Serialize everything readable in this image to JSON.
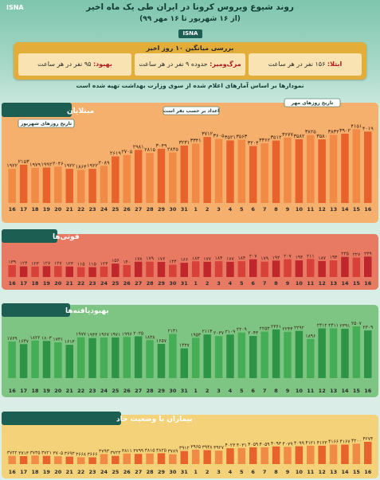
{
  "header": {
    "title": "روند شیوع ویروس کرونا در ایران طی یک ماه اخیر",
    "subtitle": "(از ۱۶ شهریور تا ۱۶ مهر ۹۹)",
    "logo": "ISNA",
    "logo_small": "ISNA"
  },
  "summary": {
    "heading": "بررسی میانگین ۱۰ روز اخیر",
    "infection": {
      "label": "ابتلا:",
      "value": "۱۵۶ نفر در هر ساعت"
    },
    "death": {
      "label": "مرگ‌ومیر:",
      "value": "حدوده ۹ نفر در هر ساعت"
    },
    "recovery": {
      "label": "بهبود:",
      "value": "۹۵ نفر در هر ساعت"
    }
  },
  "note": "نمودارها بر اساس آمارهای اعلام شده از سوی وزارت بهداشت تهیه شده است",
  "colors": {
    "background": "#dcefe8",
    "summary": "#e3ad3a",
    "cases": {
      "band": "#f6b06e",
      "bar": "#e8632b",
      "bar_light": "#f08a45"
    },
    "deaths": {
      "band": "#e87a64",
      "bar": "#c0272d",
      "bar_light": "#d74139"
    },
    "recovered": {
      "band": "#7ec583",
      "bar": "#2e9445",
      "bar_light": "#44ad56"
    },
    "critical": {
      "band": "#f4d27a",
      "bar": "#e8632b",
      "bar_light": "#f08a45"
    }
  },
  "chart_data": [
    {
      "type": "bar",
      "title": "مبتلایان",
      "annotations": [
        "تاریخ روزهای شهریور",
        "تاریخ روزهای مهر",
        "اعداد بر حسب نفر است"
      ],
      "categories": [
        "16",
        "17",
        "18",
        "19",
        "20",
        "21",
        "22",
        "23",
        "24",
        "25",
        "26",
        "27",
        "28",
        "29",
        "30",
        "31",
        "1",
        "2",
        "3",
        "4",
        "5",
        "6",
        "7",
        "8",
        "9",
        "10",
        "11",
        "12",
        "13",
        "14",
        "15",
        "16"
      ],
      "value_labels": [
        "۱۹۲۲",
        "۲۱۵۳",
        "۱۹۷۹",
        "۱۹۹۲",
        "۲۰۴۶",
        "۱۹۲۲",
        "۱۸۶۴",
        "۱۹۲۲",
        "۲۰۸۹",
        "۲۶۱۹",
        "۲۷۰۵",
        "۲۹۸۱",
        "۲۸۱۵",
        "۳۰۴۹",
        "۲۸۴۵",
        "۳۲۳۱",
        "۳۳۴۱",
        "۳۷۱۲",
        "۳۶۰۵",
        "۳۵۲۱",
        "۳۵۶۳",
        "۳۲۰۴",
        "۳۳۶۲",
        "۳۵۱۲",
        "۳۶۷۷",
        "۳۵۸۲",
        "۳۸۲۵",
        "۳۵۸۰",
        "۳۸۳۲",
        "۳۹۰۲",
        "۴۱۵۱",
        "۴۰۱۹"
      ],
      "values": [
        1922,
        2153,
        1979,
        1992,
        2046,
        1922,
        1864,
        1922,
        2089,
        2619,
        2705,
        2981,
        2815,
        3049,
        2845,
        3231,
        3341,
        3712,
        3605,
        3521,
        3563,
        3204,
        3362,
        3512,
        3677,
        3582,
        3825,
        3580,
        3832,
        3902,
        4151,
        4019
      ],
      "ylim": [
        0,
        4300
      ]
    },
    {
      "type": "bar",
      "title": "فوتی‌ها",
      "categories": [
        "16",
        "17",
        "18",
        "19",
        "20",
        "21",
        "22",
        "23",
        "24",
        "25",
        "26",
        "27",
        "28",
        "29",
        "30",
        "31",
        "1",
        "2",
        "3",
        "4",
        "5",
        "6",
        "7",
        "8",
        "9",
        "10",
        "11",
        "12",
        "13",
        "14",
        "15",
        "16"
      ],
      "value_labels": [
        "۱۳۹",
        "۱۲۴",
        "۱۲۳",
        "۱۲۷",
        "۱۲۷",
        "۱۲۳",
        "۱۱۵",
        "۱۱۵",
        "۱۲۳",
        "۱۵۶",
        "۱۴۰",
        "۱۷۸",
        "۱۷۹",
        "۱۷۶",
        "۱۴۴",
        "۱۶۶",
        "۱۸۳",
        "۱۷۷",
        "۱۸۴",
        "۱۷۷",
        "۱۸۴",
        "۲۰۷",
        "۱۷۹",
        "۱۹۲",
        "۲۰۷",
        "۱۹۴",
        "۲۱۱",
        "۱۸۷",
        "۱۹۴",
        "۲۳۵",
        "۲۲۷",
        "۲۳۹"
      ],
      "values": [
        139,
        124,
        123,
        127,
        127,
        123,
        115,
        115,
        123,
        156,
        140,
        178,
        179,
        176,
        144,
        166,
        183,
        177,
        184,
        177,
        184,
        207,
        179,
        192,
        207,
        194,
        211,
        187,
        194,
        235,
        227,
        239
      ],
      "ylim": [
        0,
        260
      ]
    },
    {
      "type": "bar",
      "title": "بهبودیافته‌ها",
      "categories": [
        "16",
        "17",
        "18",
        "19",
        "20",
        "21",
        "22",
        "23",
        "24",
        "25",
        "26",
        "27",
        "28",
        "29",
        "30",
        "31",
        "1",
        "2",
        "3",
        "4",
        "5",
        "6",
        "7",
        "8",
        "9",
        "10",
        "11",
        "12",
        "13",
        "14",
        "15",
        "16"
      ],
      "value_labels": [
        "۱۷۶۹",
        "۱۶۴۷",
        "۱۸۲۲",
        "۱۸۰۳",
        "۱۷۳۱",
        "۱۶۱۳",
        "۱۹۷۷",
        "۱۹۴۴",
        "۱۹۶۷",
        "۱۹۷۱",
        "۱۹۹۶",
        "۲۰۲۵",
        "۱۸۳۸",
        "۱۶۵۷",
        "۲۱۴۱",
        "۱۴۳۷",
        "۱۹۵۳",
        "۲۱۱۴",
        "۲۰۳۷",
        "۲۱۰۹",
        "۲۲۰۹",
        "۲۰۴۳",
        "۲۲۵۳",
        "۲۳۶۱",
        "۲۲۴۴",
        "۲۲۹۲",
        "۱۸۹۶",
        "۲۴۱۲",
        "۲۴۱۱",
        "۲۳۹۱",
        "۲۵۰۷",
        "۲۳۰۹"
      ],
      "values": [
        1769,
        1647,
        1822,
        1803,
        1731,
        1613,
        1977,
        1944,
        1967,
        1971,
        1996,
        2025,
        1838,
        1657,
        2141,
        1437,
        1953,
        2114,
        2037,
        2109,
        2209,
        2043,
        2253,
        2361,
        2244,
        2292,
        1896,
        2412,
        2411,
        2391,
        2507,
        2309
      ],
      "ylim": [
        0,
        2700
      ]
    },
    {
      "type": "bar",
      "title": "بیماران با وضعیت حاد",
      "categories": [
        "16",
        "17",
        "18",
        "19",
        "20",
        "21",
        "22",
        "23",
        "24",
        "25",
        "26",
        "27",
        "28",
        "29",
        "30",
        "31",
        "1",
        "2",
        "3",
        "4",
        "5",
        "6",
        "7",
        "8",
        "9",
        "10",
        "11",
        "12",
        "13",
        "14",
        "15",
        "16"
      ],
      "value_labels": [
        "۳۷۲۲",
        "۳۷۱۳",
        "۳۷۳۵",
        "۳۷۲۱",
        "۳۷۰۵",
        "۳۶۹۳",
        "۳۶۶۸",
        "۳۶۶۶",
        "۳۷۹۳",
        "۳۷۲۳",
        "۳۸۱۱",
        "۳۷۹۹",
        "۳۸۱۵",
        "۳۸۲۵",
        "۳۷۸۹",
        "۳۹۱۲",
        "۳۹۶۵",
        "۳۹۴۸",
        "۳۹۲۷",
        "۴۰۲۳",
        "۴۰۳۱",
        "۴۰۵۹",
        "۴۰۵۹",
        "۴۰۹۳",
        "۴۰۷۹",
        "۴۰۹۹",
        "۴۱۲۱",
        "۴۱۲۳",
        "۴۱۶۶",
        "۴۱۶۷",
        "۴۲۰۰",
        "۴۲۷۴"
      ],
      "values": [
        3722,
        3713,
        3735,
        3721,
        3705,
        3693,
        3668,
        3666,
        3793,
        3723,
        3811,
        3799,
        3815,
        3825,
        3789,
        3912,
        3965,
        3948,
        3927,
        4023,
        4031,
        4059,
        4059,
        4093,
        4079,
        4099,
        4121,
        4123,
        4166,
        4167,
        4200,
        4274
      ],
      "ylim": [
        3400,
        4400
      ]
    }
  ]
}
